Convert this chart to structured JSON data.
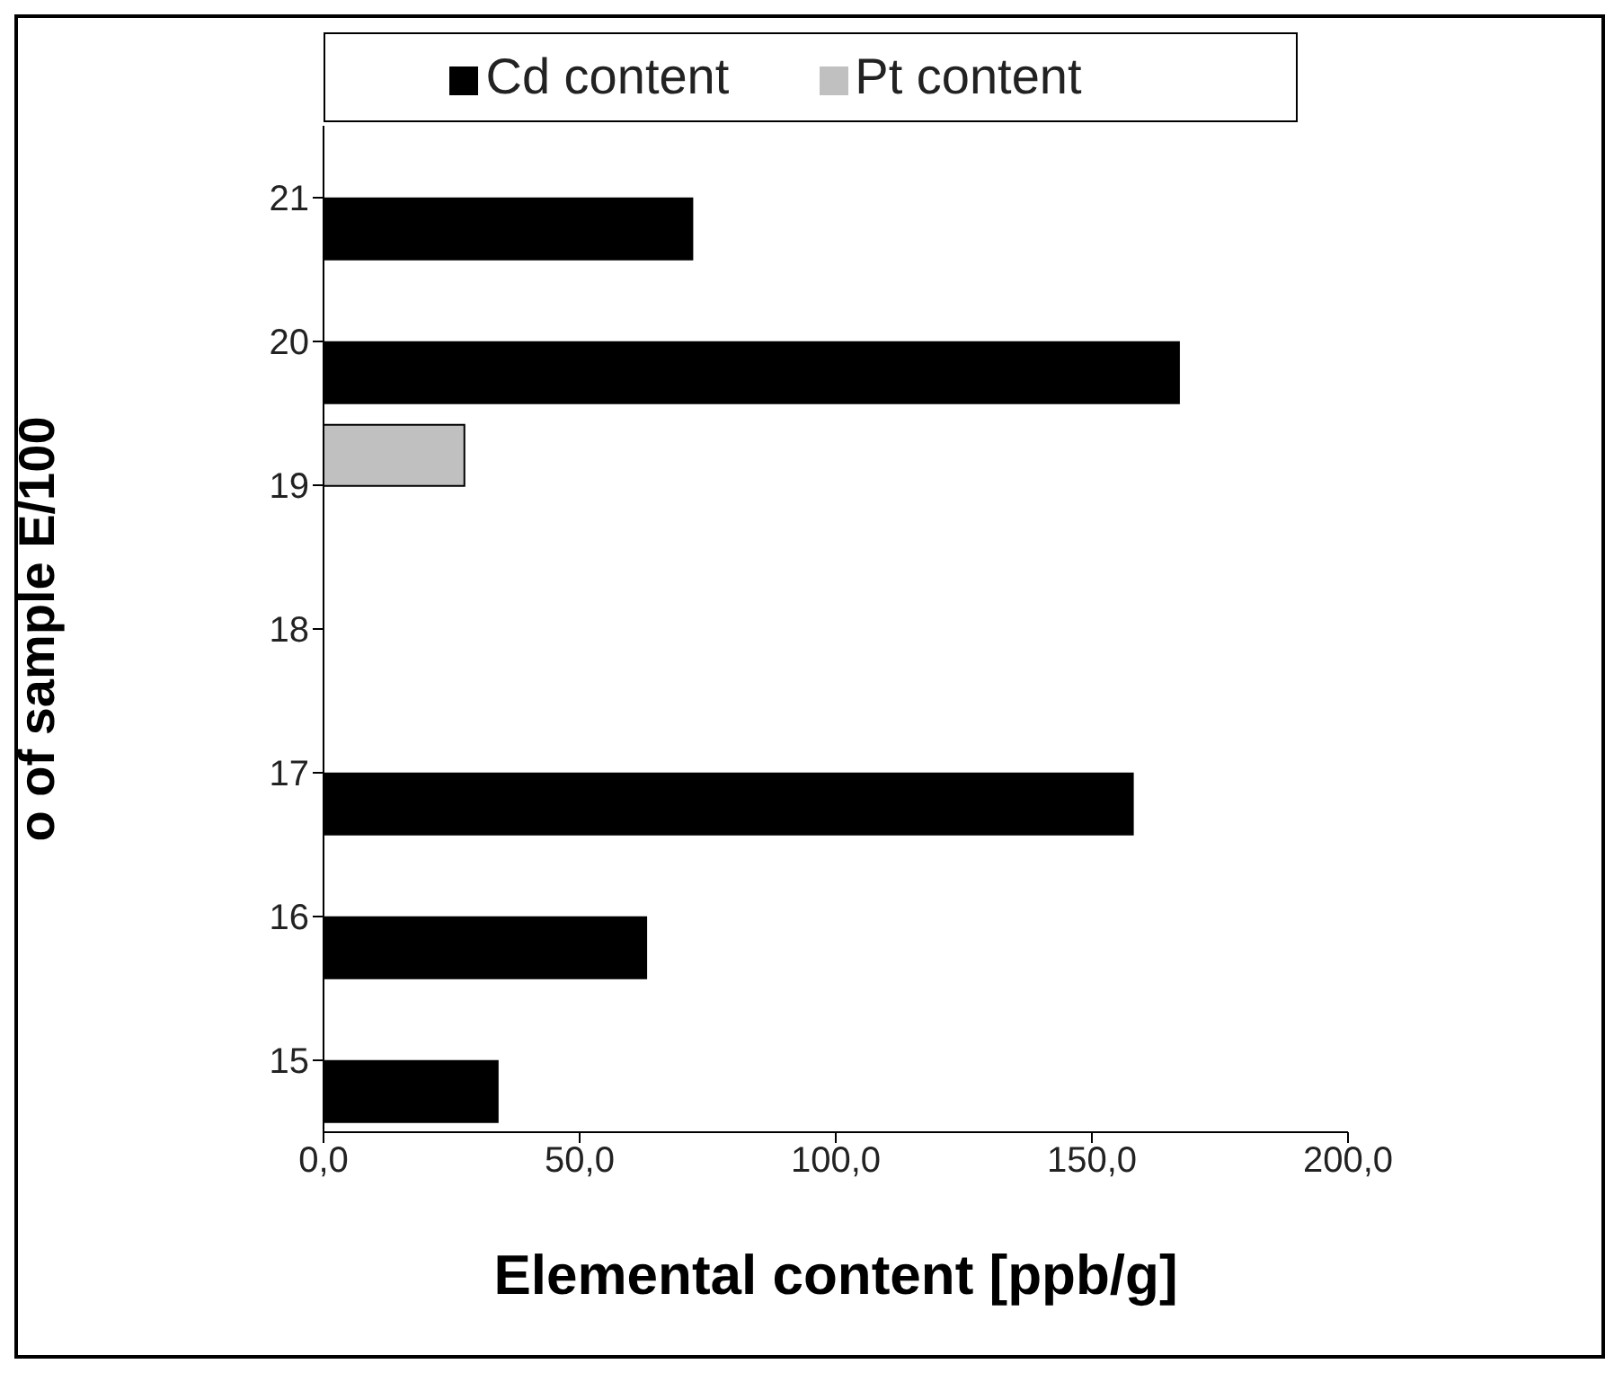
{
  "chart_data": {
    "type": "bar",
    "orientation": "horizontal",
    "xlabel": "Elemental content [ppb/g]",
    "ylabel": "o of sample E/100",
    "categories": [
      "21",
      "20",
      "19",
      "18",
      "17",
      "16",
      "15"
    ],
    "series": [
      {
        "name": "Pt content",
        "color": "#c0c0c0",
        "values": [
          null,
          null,
          27.5,
          null,
          null,
          null,
          null
        ]
      },
      {
        "name": "Cd content",
        "color": "#000000",
        "values": [
          72,
          167,
          null,
          null,
          158,
          63,
          34
        ]
      }
    ],
    "xlim": [
      0,
      200
    ],
    "xticks": [
      {
        "value": 0,
        "label": "0,0"
      },
      {
        "value": 50,
        "label": "50,0"
      },
      {
        "value": 100,
        "label": "100,0"
      },
      {
        "value": 150,
        "label": "150,0"
      },
      {
        "value": 200,
        "label": "200,0"
      }
    ],
    "legend": "top"
  }
}
